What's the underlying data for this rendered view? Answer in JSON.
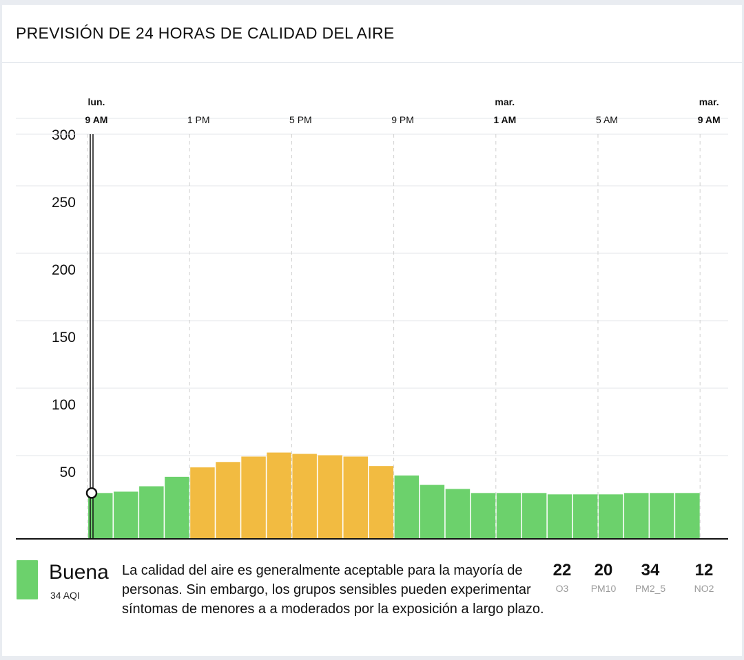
{
  "title": "PREVISIÓN DE 24 HORAS DE CALIDAD DEL AIRE",
  "chart_data": {
    "type": "bar",
    "ylim": [
      0,
      300
    ],
    "y_ticks": [
      "50",
      "100",
      "150",
      "200",
      "250",
      "300"
    ],
    "x_ticks": [
      {
        "day": "lun.",
        "time": "9 AM",
        "bold": true
      },
      {
        "day": "",
        "time": "1 PM",
        "bold": false
      },
      {
        "day": "",
        "time": "5 PM",
        "bold": false
      },
      {
        "day": "",
        "time": "9 PM",
        "bold": false
      },
      {
        "day": "mar.",
        "time": "1 AM",
        "bold": true
      },
      {
        "day": "",
        "time": "5 AM",
        "bold": false
      },
      {
        "day": "mar.",
        "time": "9 AM",
        "bold": true
      }
    ],
    "hours": [
      "9 AM",
      "10 AM",
      "11 AM",
      "12 PM",
      "1 PM",
      "2 PM",
      "3 PM",
      "4 PM",
      "5 PM",
      "6 PM",
      "7 PM",
      "8 PM",
      "9 PM",
      "10 PM",
      "11 PM",
      "12 AM",
      "1 AM",
      "2 AM",
      "3 AM",
      "4 AM",
      "5 AM",
      "6 AM",
      "7 AM",
      "8 AM"
    ],
    "values": [
      34,
      35,
      39,
      46,
      53,
      57,
      61,
      64,
      63,
      62,
      61,
      54,
      47,
      40,
      37,
      34,
      34,
      34,
      33,
      33,
      33,
      34,
      34,
      34
    ],
    "current_value": 34,
    "colors": {
      "good": "#6cd16c",
      "moderate": "#f2bb41"
    },
    "moderate_threshold": 50
  },
  "legend": {
    "level": "Buena",
    "aqi": "34 AQI",
    "color": "#6cd16c",
    "description": "La calidad del aire es generalmente aceptable para la mayoría de personas. Sin embargo, los grupos sensibles pueden experimentar síntomas de menores a a moderados por la exposición a largo plazo."
  },
  "pollutants": [
    {
      "value": "22",
      "name": "O3"
    },
    {
      "value": "20",
      "name": "PM10"
    },
    {
      "value": "34",
      "name": "PM2_5"
    },
    {
      "value": "12",
      "name": "NO2"
    }
  ]
}
